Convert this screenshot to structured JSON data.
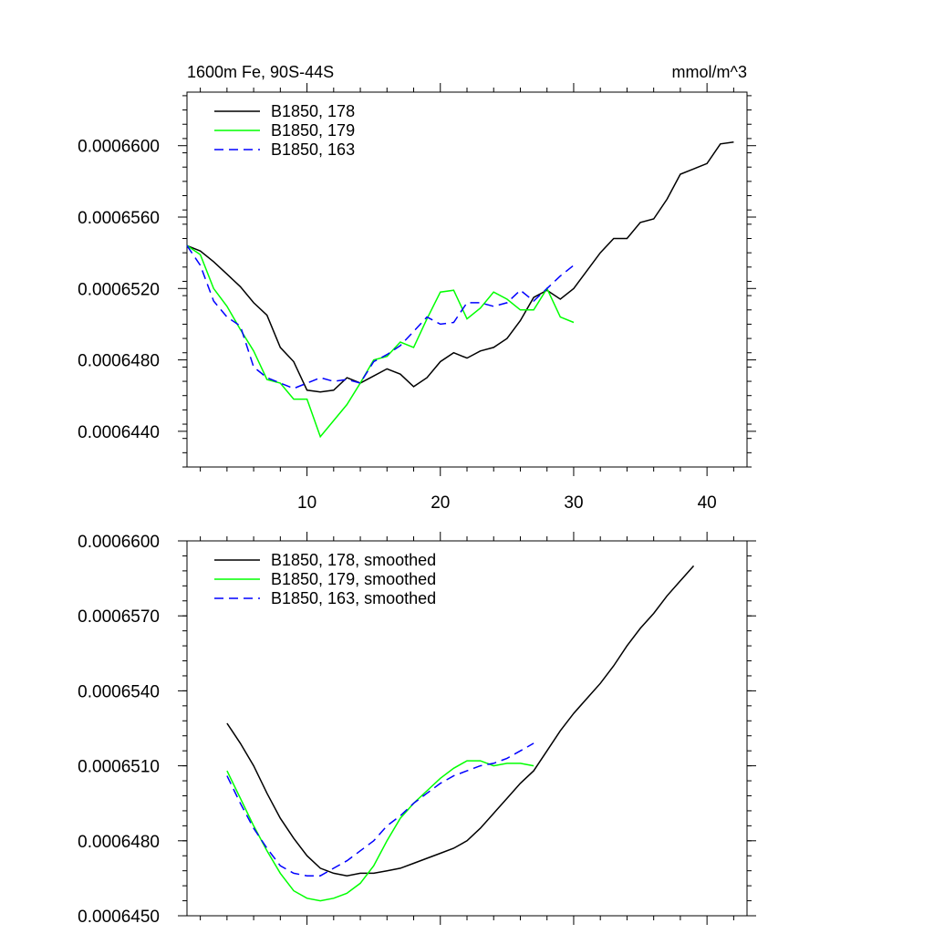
{
  "chart_data": [
    {
      "type": "line",
      "title_left": "1600m Fe, 90S-44S",
      "title_right": "mmol/m^3",
      "xlim": [
        1,
        43
      ],
      "ylim": [
        0.000642,
        0.000663
      ],
      "x_ticks": [
        10,
        20,
        30,
        40
      ],
      "x_tick_labels": [
        "10",
        "20",
        "30",
        "40"
      ],
      "y_ticks": [
        0.000644,
        0.000648,
        0.000652,
        0.000656,
        0.00066
      ],
      "y_tick_labels": [
        "0.0006440",
        "0.0006480",
        "0.0006520",
        "0.0006560",
        "0.0006600"
      ],
      "legend_position": "top-left",
      "series": [
        {
          "name": "B1850, 178",
          "color": "#000000",
          "dash": "",
          "x": [
            1,
            2,
            3,
            4,
            5,
            6,
            7,
            8,
            9,
            10,
            11,
            12,
            13,
            14,
            15,
            16,
            17,
            18,
            19,
            20,
            21,
            22,
            23,
            24,
            25,
            26,
            27,
            28,
            29,
            30,
            31,
            32,
            33,
            34,
            35,
            36,
            37,
            38,
            39,
            40,
            41,
            42
          ],
          "values": [
            0.0006544,
            0.0006541,
            0.0006535,
            0.0006528,
            0.0006521,
            0.0006512,
            0.0006505,
            0.0006487,
            0.0006479,
            0.0006463,
            0.0006462,
            0.0006463,
            0.000647,
            0.0006467,
            0.0006471,
            0.0006475,
            0.0006472,
            0.0006465,
            0.000647,
            0.0006479,
            0.0006484,
            0.0006481,
            0.0006485,
            0.0006487,
            0.0006492,
            0.0006502,
            0.0006515,
            0.0006519,
            0.0006514,
            0.000652,
            0.000653,
            0.000654,
            0.0006548,
            0.0006548,
            0.0006557,
            0.0006559,
            0.000657,
            0.0006584,
            0.0006587,
            0.000659,
            0.0006601,
            0.0006602
          ]
        },
        {
          "name": "B1850, 179",
          "color": "#00ff00",
          "dash": "",
          "x": [
            1,
            2,
            3,
            4,
            5,
            6,
            7,
            8,
            9,
            10,
            11,
            12,
            13,
            14,
            15,
            16,
            17,
            18,
            19,
            20,
            21,
            22,
            23,
            24,
            25,
            26,
            27,
            28,
            29,
            30
          ],
          "values": [
            0.0006544,
            0.0006539,
            0.000652,
            0.000651,
            0.0006497,
            0.0006485,
            0.0006469,
            0.0006467,
            0.0006458,
            0.0006458,
            0.0006437,
            0.0006446,
            0.0006455,
            0.0006467,
            0.000648,
            0.0006482,
            0.000649,
            0.0006487,
            0.0006503,
            0.0006518,
            0.0006519,
            0.0006503,
            0.0006509,
            0.0006518,
            0.0006514,
            0.0006508,
            0.0006508,
            0.000652,
            0.0006504,
            0.0006501
          ]
        },
        {
          "name": "B1850, 163",
          "color": "#0000ff",
          "dash": "10,6",
          "x": [
            1,
            2,
            3,
            4,
            5,
            6,
            7,
            8,
            9,
            10,
            11,
            12,
            13,
            14,
            15,
            16,
            17,
            18,
            19,
            20,
            21,
            22,
            23,
            24,
            25,
            26,
            27,
            28,
            29,
            30
          ],
          "values": [
            0.0006544,
            0.0006533,
            0.0006513,
            0.0006504,
            0.0006499,
            0.0006476,
            0.000647,
            0.0006467,
            0.0006464,
            0.0006467,
            0.000647,
            0.0006468,
            0.0006469,
            0.0006467,
            0.0006479,
            0.0006483,
            0.0006488,
            0.0006496,
            0.0006504,
            0.00065,
            0.0006501,
            0.0006512,
            0.0006512,
            0.000651,
            0.0006512,
            0.0006519,
            0.0006513,
            0.000652,
            0.0006527,
            0.0006533
          ]
        }
      ]
    },
    {
      "type": "line",
      "xlim": [
        1,
        43
      ],
      "ylim": [
        0.000645,
        0.00066
      ],
      "y_ticks": [
        0.000645,
        0.000648,
        0.000651,
        0.000654,
        0.000657,
        0.00066
      ],
      "y_tick_labels": [
        "0.0006450",
        "0.0006480",
        "0.0006510",
        "0.0006540",
        "0.0006570",
        "0.0006600"
      ],
      "x_ticks": [
        10,
        20,
        30,
        40
      ],
      "legend_position": "top-left",
      "series": [
        {
          "name": "B1850, 178, smoothed",
          "color": "#000000",
          "dash": "",
          "x": [
            4,
            5,
            6,
            7,
            8,
            9,
            10,
            11,
            12,
            13,
            14,
            15,
            16,
            17,
            18,
            19,
            20,
            21,
            22,
            23,
            24,
            25,
            26,
            27,
            28,
            29,
            30,
            31,
            32,
            33,
            34,
            35,
            36,
            37,
            38,
            39
          ],
          "values": [
            0.0006527,
            0.0006519,
            0.000651,
            0.0006499,
            0.0006489,
            0.0006481,
            0.0006474,
            0.0006469,
            0.0006467,
            0.0006466,
            0.0006467,
            0.0006467,
            0.0006468,
            0.0006469,
            0.0006471,
            0.0006473,
            0.0006475,
            0.0006477,
            0.000648,
            0.0006485,
            0.0006491,
            0.0006497,
            0.0006503,
            0.0006508,
            0.0006516,
            0.0006524,
            0.0006531,
            0.0006537,
            0.0006543,
            0.000655,
            0.0006558,
            0.0006565,
            0.0006571,
            0.0006578,
            0.0006584,
            0.000659
          ]
        },
        {
          "name": "B1850, 179, smoothed",
          "color": "#00ff00",
          "dash": "",
          "x": [
            4,
            5,
            6,
            7,
            8,
            9,
            10,
            11,
            12,
            13,
            14,
            15,
            16,
            17,
            18,
            19,
            20,
            21,
            22,
            23,
            24,
            25,
            26,
            27
          ],
          "values": [
            0.0006508,
            0.0006497,
            0.0006486,
            0.0006476,
            0.0006467,
            0.000646,
            0.0006457,
            0.0006456,
            0.0006457,
            0.0006459,
            0.0006463,
            0.000647,
            0.000648,
            0.0006489,
            0.0006495,
            0.00065,
            0.0006505,
            0.0006509,
            0.0006512,
            0.0006512,
            0.000651,
            0.0006511,
            0.0006511,
            0.000651
          ]
        },
        {
          "name": "B1850, 163, smoothed",
          "color": "#0000ff",
          "dash": "10,6",
          "x": [
            4,
            5,
            6,
            7,
            8,
            9,
            10,
            11,
            12,
            13,
            14,
            15,
            16,
            17,
            18,
            19,
            20,
            21,
            22,
            23,
            24,
            25,
            26,
            27
          ],
          "values": [
            0.0006506,
            0.0006495,
            0.0006485,
            0.0006477,
            0.000647,
            0.0006467,
            0.0006466,
            0.0006466,
            0.0006469,
            0.0006472,
            0.0006476,
            0.000648,
            0.0006486,
            0.000649,
            0.0006495,
            0.0006499,
            0.0006503,
            0.0006506,
            0.0006508,
            0.000651,
            0.0006511,
            0.0006513,
            0.0006516,
            0.0006519
          ]
        }
      ]
    }
  ]
}
